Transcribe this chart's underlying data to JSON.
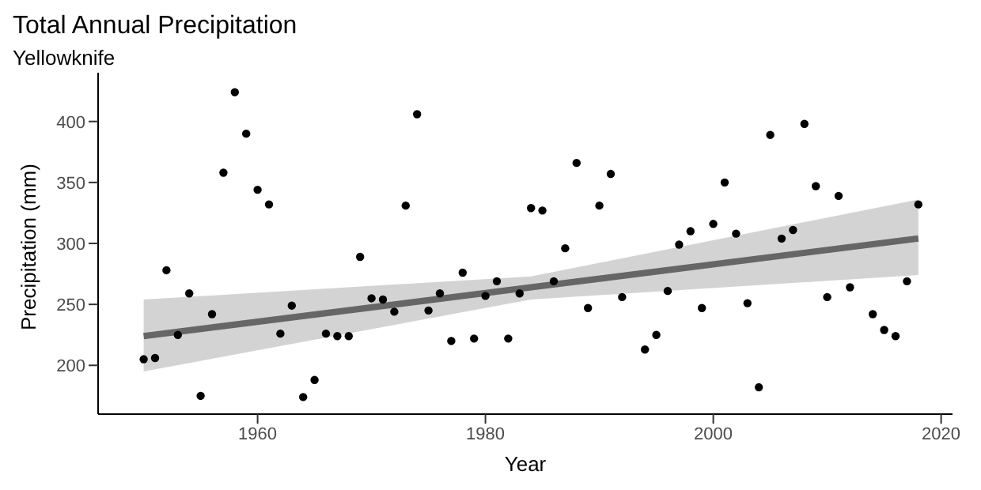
{
  "chart_data": {
    "type": "scatter",
    "title": "Total Annual Precipitation",
    "subtitle": "Yellowknife",
    "xlabel": "Year",
    "ylabel": "Precipitation (mm)",
    "xlim": [
      1946,
      2021
    ],
    "xticks": [
      1960,
      1980,
      2000,
      2020
    ],
    "ylim": [
      160,
      440
    ],
    "yticks": [
      200,
      250,
      300,
      350,
      400
    ],
    "grid": false,
    "legend": false,
    "series": [
      {
        "color": "#000000",
        "marker": "circle",
        "x": [
          1950,
          1951,
          1952,
          1953,
          1954,
          1955,
          1956,
          1957,
          1958,
          1959,
          1960,
          1961,
          1962,
          1963,
          1964,
          1965,
          1966,
          1967,
          1968,
          1969,
          1970,
          1971,
          1972,
          1973,
          1974,
          1975,
          1976,
          1977,
          1978,
          1979,
          1980,
          1981,
          1982,
          1983,
          1984,
          1985,
          1986,
          1987,
          1988,
          1989,
          1990,
          1991,
          1992,
          1994,
          1995,
          1996,
          1997,
          1998,
          1999,
          2000,
          2001,
          2002,
          2003,
          2004,
          2005,
          2006,
          2007,
          2008,
          2009,
          2010,
          2011,
          2012,
          2014,
          2015,
          2016,
          2017,
          2018
        ],
        "values": [
          205,
          206,
          278,
          225,
          259,
          175,
          242,
          358,
          424,
          390,
          344,
          332,
          226,
          249,
          174,
          188,
          226,
          224,
          224,
          289,
          255,
          254,
          244,
          331,
          406,
          245,
          259,
          220,
          276,
          222,
          257,
          269,
          222,
          259,
          329,
          327,
          269,
          296,
          366,
          247,
          331,
          357,
          256,
          213,
          225,
          261,
          299,
          310,
          247,
          316,
          350,
          308,
          251,
          182,
          389,
          304,
          311,
          398,
          347,
          256,
          339,
          264,
          242,
          229,
          224,
          269,
          332
        ]
      },
      {
        "type": "line",
        "color": "#666666",
        "x": [
          1950,
          1984,
          2018
        ],
        "values": [
          224,
          264,
          304
        ],
        "lower": [
          195,
          254,
          274
        ],
        "upper": [
          254,
          273,
          336
        ]
      }
    ]
  }
}
